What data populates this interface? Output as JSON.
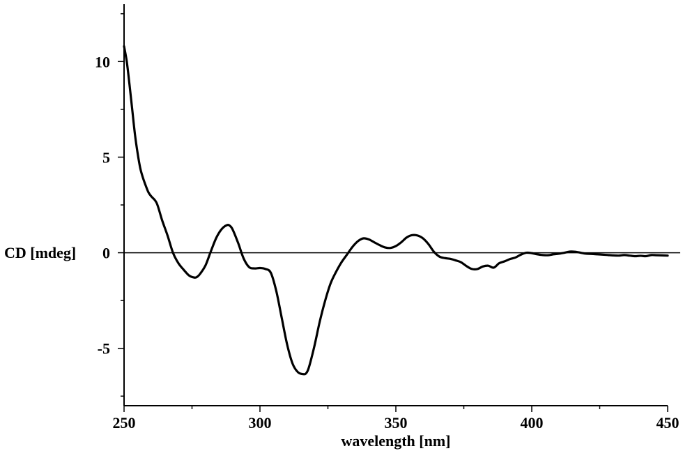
{
  "chart_data": {
    "type": "line",
    "xlabel": "wavelength [nm]",
    "ylabel": "CD [mdeg]",
    "xlim": [
      250,
      450
    ],
    "ylim": [
      -8,
      13
    ],
    "xticks": [
      250,
      300,
      350,
      400,
      450
    ],
    "xtick_labels": [
      "250",
      "300",
      "350",
      "400",
      "450"
    ],
    "yticks": [
      10,
      5,
      0,
      -5
    ],
    "ytick_labels": [
      "10",
      "5",
      "0",
      "-5"
    ],
    "y_minor_step": 2.5,
    "x_minor_step": 25,
    "zero_line": true,
    "grid": false,
    "line_color": "#000000",
    "series": [
      {
        "x": [
          250,
          251,
          252,
          253,
          254,
          255,
          256,
          257,
          258,
          259,
          260,
          262,
          264,
          266,
          268,
          270,
          272,
          274,
          276,
          277,
          278,
          280,
          282,
          284,
          286,
          288,
          289,
          290,
          292,
          294,
          296,
          298,
          300,
          302,
          304,
          306,
          308,
          310,
          312,
          314,
          316,
          317,
          318,
          320,
          322,
          324,
          326,
          328,
          330,
          332,
          334,
          336,
          338,
          340,
          342,
          344,
          346,
          348,
          350,
          352,
          354,
          356,
          358,
          360,
          362,
          364,
          366,
          368,
          370,
          372,
          374,
          376,
          378,
          380,
          382,
          384,
          386,
          388,
          390,
          392,
          394,
          396,
          398,
          400,
          402,
          404,
          406,
          408,
          410,
          412,
          414,
          416,
          418,
          420,
          422,
          424,
          426,
          428,
          430,
          432,
          434,
          436,
          438,
          440,
          442,
          444,
          446,
          448,
          450
        ],
        "y": [
          10.8,
          10.0,
          8.8,
          7.5,
          6.2,
          5.2,
          4.4,
          3.9,
          3.5,
          3.15,
          2.95,
          2.6,
          1.7,
          0.9,
          0.0,
          -0.55,
          -0.9,
          -1.2,
          -1.3,
          -1.25,
          -1.1,
          -0.65,
          0.1,
          0.8,
          1.25,
          1.45,
          1.4,
          1.2,
          0.5,
          -0.3,
          -0.75,
          -0.82,
          -0.8,
          -0.85,
          -1.05,
          -2.0,
          -3.4,
          -4.8,
          -5.8,
          -6.25,
          -6.35,
          -6.3,
          -6.0,
          -4.9,
          -3.6,
          -2.5,
          -1.6,
          -1.0,
          -0.5,
          -0.1,
          0.3,
          0.6,
          0.75,
          0.7,
          0.55,
          0.4,
          0.28,
          0.25,
          0.35,
          0.55,
          0.8,
          0.92,
          0.9,
          0.75,
          0.45,
          0.05,
          -0.2,
          -0.28,
          -0.32,
          -0.4,
          -0.5,
          -0.7,
          -0.85,
          -0.85,
          -0.72,
          -0.68,
          -0.78,
          -0.55,
          -0.45,
          -0.33,
          -0.25,
          -0.1,
          0.0,
          -0.02,
          -0.08,
          -0.12,
          -0.13,
          -0.08,
          -0.05,
          0.0,
          0.06,
          0.05,
          0.0,
          -0.05,
          -0.06,
          -0.08,
          -0.1,
          -0.12,
          -0.14,
          -0.15,
          -0.12,
          -0.15,
          -0.18,
          -0.16,
          -0.18,
          -0.12,
          -0.13,
          -0.14,
          -0.15
        ]
      }
    ]
  }
}
